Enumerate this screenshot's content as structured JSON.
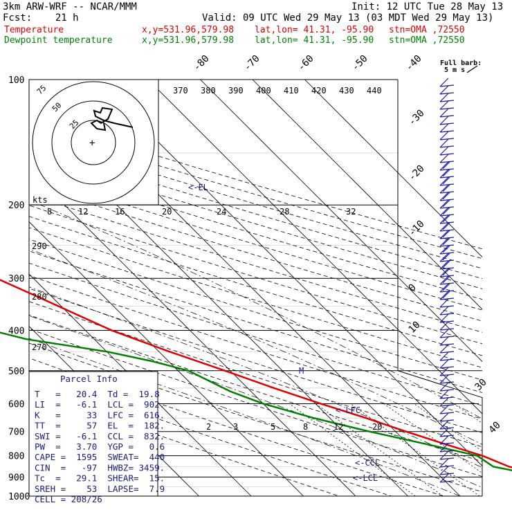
{
  "header": {
    "model": "3km ARW-WRF -- NCAR/MMM",
    "init": "Init: 12 UTC Tue 28 May 13",
    "fcst": "Fcst:    21 h",
    "valid": "Valid: 09 UTC Wed 29 May 13 (03 MDT Wed 29 May 13)",
    "temp_line": {
      "label": "Temperature",
      "xy": "x,y=531.96,579.98",
      "latlon": "lat,lon= 41.31, -95.90",
      "stn": "stn=OMA ,72550"
    },
    "dew_line": {
      "label": "Dewpoint temperature",
      "xy": "x,y=531.96,579.98",
      "latlon": "lat,lon= 41.31, -95.90",
      "stn": "stn=OMA ,72550"
    }
  },
  "colors": {
    "temperature": "#e00000",
    "dewpoint": "#008000",
    "barb": "#1a1aa0",
    "annot": "#1a1a80"
  },
  "pressure_labels": [
    "100",
    "200",
    "300",
    "400",
    "500",
    "600",
    "700",
    "800",
    "900",
    "1000"
  ],
  "top_temp_labels": [
    "-80",
    "-70",
    "-60",
    "-50",
    "-40"
  ],
  "right_temp_labels": [
    "-30",
    "-20",
    "-10",
    "0",
    "10",
    "20",
    "30",
    "40"
  ],
  "theta_labels": [
    "370",
    "380",
    "390",
    "400",
    "410",
    "420",
    "430",
    "440"
  ],
  "theta_left_labels": [
    "290",
    "280",
    "270"
  ],
  "mixing_ratio_labels": [
    "2",
    "3",
    "5",
    "8",
    "12",
    "20"
  ],
  "hodograph": {
    "kts_label": "kts",
    "speed_scale": [
      "8",
      "12",
      "16",
      "20",
      "24",
      "28",
      "32"
    ],
    "ring_labels": [
      "75",
      "50",
      "25"
    ]
  },
  "barb_header": {
    "line1": "Full barb:",
    "line2": "5 m s"
  },
  "annotations": {
    "el": "<-EL",
    "lfc": "<-LFC",
    "ccl": "<-CCL",
    "lcl": "<-LCL",
    "m": "M"
  },
  "parcel_info": {
    "title": "Parcel Info",
    "rows": [
      "T   =   20.4  Td =  19.8",
      "LI  =   -6.1  LCL =  902.",
      "K   =     33  LFC =  616.",
      "TT  =     57  EL  =  182.",
      "SWI =   -6.1  CCL =  832.",
      "PW  =   3.70  YGP =   0.6",
      "CAPE =  1595  SWEAT=  440",
      "CIN  =   -97  HWBZ= 3459.",
      "Tc  =   29.1  SHEAR=  15.",
      "SREH =    53  LAPSE=  7.9",
      "CELL = 208/26"
    ]
  },
  "chart_data": {
    "type": "line",
    "title": "",
    "xlabel": "",
    "ylabel": "",
    "ylim": [
      1000,
      100
    ],
    "y_scale": "log-pressure",
    "skew_x": true,
    "series": [
      {
        "name": "Temperature",
        "points": [
          [
            100,
            -56
          ],
          [
            130,
            -56
          ],
          [
            150,
            -58
          ],
          [
            170,
            -60
          ],
          [
            190,
            -62
          ],
          [
            200,
            -61
          ],
          [
            230,
            -57
          ],
          [
            280,
            -50
          ],
          [
            330,
            -43
          ],
          [
            400,
            -35
          ],
          [
            450,
            -28
          ],
          [
            500,
            -21
          ],
          [
            550,
            -15
          ],
          [
            600,
            -9
          ],
          [
            650,
            -3
          ],
          [
            700,
            2
          ],
          [
            760,
            8
          ],
          [
            800,
            12
          ],
          [
            850,
            15
          ],
          [
            880,
            19
          ],
          [
            900,
            20
          ],
          [
            950,
            21
          ]
        ]
      },
      {
        "name": "Dewpoint temperature",
        "points": [
          [
            100,
            -82
          ],
          [
            150,
            -78
          ],
          [
            170,
            -80
          ],
          [
            200,
            -75
          ],
          [
            250,
            -67
          ],
          [
            300,
            -61
          ],
          [
            340,
            -64
          ],
          [
            370,
            -66
          ],
          [
            420,
            -53
          ],
          [
            450,
            -40
          ],
          [
            475,
            -33
          ],
          [
            500,
            -28
          ],
          [
            560,
            -24
          ],
          [
            600,
            -20
          ],
          [
            650,
            -13
          ],
          [
            700,
            -5
          ],
          [
            760,
            5
          ],
          [
            800,
            11
          ],
          [
            850,
            12
          ],
          [
            880,
            17
          ],
          [
            920,
            19
          ],
          [
            950,
            19
          ]
        ]
      }
    ]
  }
}
